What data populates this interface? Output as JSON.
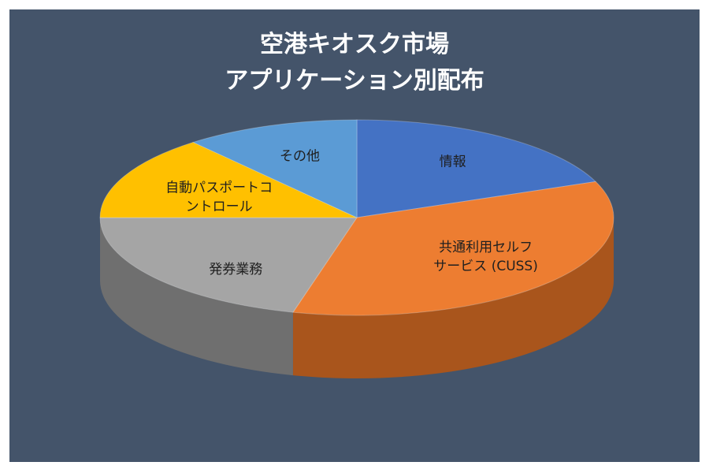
{
  "chart_data": {
    "type": "pie",
    "title_line1": "空港キオスク市場",
    "title_line2": "アプリケーション別配布",
    "series": [
      {
        "name": "情報",
        "value": 19,
        "color": "#4472c4",
        "side": "#2f5597"
      },
      {
        "name": "共通利用セルフサービス (CUSS)",
        "value": 35,
        "color": "#ed7d31",
        "side": "#a9551c"
      },
      {
        "name": "発券業務",
        "value": 21,
        "color": "#a5a5a5",
        "side": "#6f6f6f"
      },
      {
        "name": "自動パスポートコントロール",
        "value": 14,
        "color": "#ffc000",
        "side": "#c08f00"
      },
      {
        "name": "その他",
        "value": 11,
        "color": "#5b9bd5",
        "side": "#3a78b0"
      }
    ],
    "slice_labels": [
      {
        "lines": [
          "情報"
        ]
      },
      {
        "lines": [
          "共通利用セルフ",
          "サービス (CUSS)"
        ]
      },
      {
        "lines": [
          "発券業務"
        ]
      },
      {
        "lines": [
          "自動パスポートコ",
          "ントロール"
        ]
      },
      {
        "lines": [
          "その他"
        ]
      }
    ],
    "legend": "none",
    "style": "3d"
  }
}
